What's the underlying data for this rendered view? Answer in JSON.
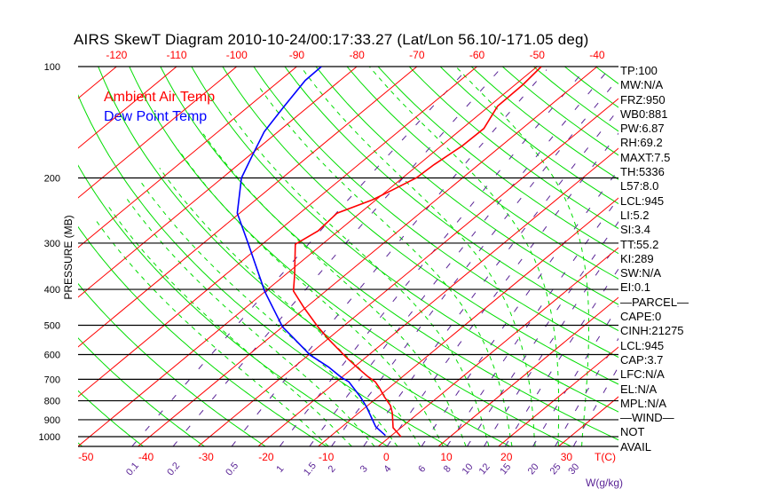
{
  "title": "AIRS SkewT Diagram 2010-10-24/00:17:33.27 (Lat/Lon 56.10/-171.05 deg)",
  "legend": {
    "temp_label": "Ambient Air Temp",
    "dew_label": "Dew Point Temp"
  },
  "stats": [
    "TP:100",
    "MW:N/A",
    "FRZ:950",
    "WB0:881",
    "PW:6.87",
    "RH:69.2",
    "MAXT:7.5",
    "TH:5336",
    "L57:8.0",
    "LCL:945",
    "LI:5.2",
    "SI:3.4",
    "TT:55.2",
    "KI:289",
    "SW:N/A",
    "EI:0.1",
    "—PARCEL—",
    "CAPE:0",
    "CINH:21275",
    "LCL:945",
    "CAP:3.7",
    "LFC:N/A",
    "EL:N/A",
    "MPL:N/A",
    "—WIND—",
    "NOT",
    "AVAIL"
  ],
  "colors": {
    "temp": "#ff0000",
    "dew": "#0000ff",
    "isotherm": "#ff0000",
    "dry_adiabat": "#00dd00",
    "moist_adiabat": "#00dd00",
    "mixing_ratio": "#5a2496",
    "grid": "#000000"
  },
  "chart_data": {
    "type": "line",
    "subtype": "skew-t log-p",
    "title": "AIRS SkewT Diagram 2010-10-24/00:17:33.27 (Lat/Lon 56.10/-171.05 deg)",
    "ylabel": "PRESSURE (MB)",
    "xlabel": "T(C)",
    "mixing_label": "W(g/kg)",
    "ylim": [
      1062,
      100
    ],
    "pressure_ticks": [
      "100",
      "200",
      "300",
      "400",
      "500",
      "600",
      "700",
      "800",
      "900",
      "1000"
    ],
    "top_temp_ticks": [
      "-120",
      "-110",
      "-100",
      "-90",
      "-80",
      "-70",
      "-60",
      "-50",
      "-40"
    ],
    "bottom_temp_ticks": [
      "-50",
      "-40",
      "-30",
      "-20",
      "-10",
      "0",
      "10",
      "20",
      "30"
    ],
    "mixing_ratio_ticks": [
      "0.1",
      "0.2",
      "0.5",
      "1",
      "1.5",
      "2",
      "3",
      "4",
      "6",
      "8",
      "10",
      "12",
      "15",
      "20",
      "25",
      "30"
    ],
    "reference_lines": {
      "isotherms_c": [
        -120,
        -110,
        -100,
        -90,
        -80,
        -70,
        -60,
        -50,
        -40,
        -30,
        -20,
        -10,
        0,
        10,
        20,
        30,
        40
      ],
      "dry_adiabats_k": [
        210,
        220,
        230,
        240,
        250,
        260,
        270,
        280,
        290,
        300,
        310,
        320,
        330,
        340,
        350,
        360,
        370,
        380,
        390,
        400,
        410,
        420,
        430,
        440,
        450,
        460
      ],
      "moist_adiabats_c_at_1000": [
        -12,
        -8,
        -4,
        0,
        4,
        8,
        12,
        16,
        20,
        24,
        28,
        32
      ],
      "mixing_ratios_gkg": [
        0.1,
        0.2,
        0.5,
        1,
        1.5,
        2,
        3,
        4,
        6,
        8,
        10,
        12,
        15,
        20,
        25,
        30
      ]
    },
    "series": [
      {
        "name": "Ambient Air Temp",
        "pressure": [
          1000,
          946,
          863,
          824,
          780,
          738,
          711,
          688,
          651,
          608,
          544,
          505,
          449,
          404,
          366,
          302,
          278,
          249,
          229,
          217,
          200,
          184,
          164,
          147,
          128,
          112,
          100
        ],
        "temp_c": [
          1.8,
          -1.3,
          -4.4,
          -6.2,
          -9.0,
          -11.6,
          -13.5,
          -15.8,
          -19.3,
          -23.5,
          -30.0,
          -34.1,
          -40.2,
          -45.4,
          -48.4,
          -54.5,
          -53.4,
          -53.8,
          -50.6,
          -49.4,
          -47.7,
          -47.4,
          -46.5,
          -46.4,
          -48.6,
          -48.7,
          -49.3
        ]
      },
      {
        "name": "Dew Point Temp",
        "pressure": [
          993,
          940,
          903,
          831,
          780,
          711,
          692,
          648,
          602,
          549,
          505,
          405,
          302,
          249,
          200,
          174,
          150,
          128,
          109,
          100
        ],
        "temp_c": [
          -1.0,
          -4.4,
          -6.2,
          -9.9,
          -13.0,
          -17.9,
          -20.0,
          -24.3,
          -29.7,
          -35.1,
          -40.0,
          -50.1,
          -62.3,
          -70.4,
          -76.8,
          -79.5,
          -82.3,
          -84.1,
          -85.8,
          -85.9
        ]
      }
    ]
  }
}
